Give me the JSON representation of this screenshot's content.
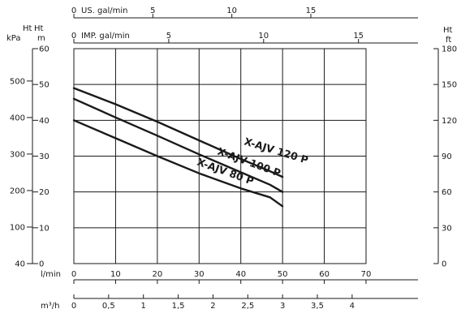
{
  "chart_data": {
    "type": "line",
    "x": [
      0,
      10,
      20,
      30,
      40,
      47,
      50
    ],
    "xlabel": "l/min",
    "xlim": [
      0,
      70
    ],
    "ylabel": "m",
    "ylim": [
      0,
      60
    ],
    "grid": true,
    "series": [
      {
        "name": "X-AJV 120 P",
        "x": [
          0,
          10,
          20,
          30,
          40,
          47,
          50
        ],
        "values": [
          49,
          44.5,
          39.6,
          34.4,
          29.2,
          25.8,
          24.2
        ]
      },
      {
        "name": "X-AJV 100 P",
        "x": [
          0,
          10,
          20,
          30,
          40,
          47,
          50
        ],
        "values": [
          46,
          40.8,
          35.7,
          30.5,
          25.5,
          22,
          20
        ]
      },
      {
        "name": "X-AJV 80 P",
        "x": [
          0,
          10,
          20,
          30,
          40,
          47,
          50
        ],
        "values": [
          40,
          35,
          30,
          25.2,
          21,
          18.5,
          16
        ]
      }
    ],
    "axes": {
      "head_m": {
        "label": "m",
        "ticks": [
          "0",
          "10",
          "20",
          "30",
          "40",
          "50",
          "60"
        ]
      },
      "kpa": {
        "label": "kPa",
        "ticks": [
          "40",
          "100",
          "200",
          "300",
          "400",
          "500"
        ]
      },
      "kpa_title": "Ht",
      "head_m_title": "Ht",
      "ft": {
        "label": "ft",
        "title": "Ht",
        "ticks": [
          "0",
          "30",
          "60",
          "90",
          "120",
          "150",
          "180"
        ]
      },
      "lmin": {
        "label": "l/min",
        "ticks": [
          "0",
          "10",
          "20",
          "30",
          "40",
          "50",
          "60",
          "70"
        ]
      },
      "m3h": {
        "label": "m³/h",
        "ticks": [
          "0",
          "0,5",
          "1",
          "1,5",
          "2",
          "2,5",
          "3",
          "3,5",
          "4"
        ]
      },
      "us_gal": {
        "label": "US. gal/min",
        "ticks": [
          "0",
          "5",
          "10",
          "15"
        ]
      },
      "imp_gal": {
        "label": "IMP. gal/min",
        "ticks": [
          "0",
          "5",
          "10",
          "15"
        ]
      }
    }
  }
}
